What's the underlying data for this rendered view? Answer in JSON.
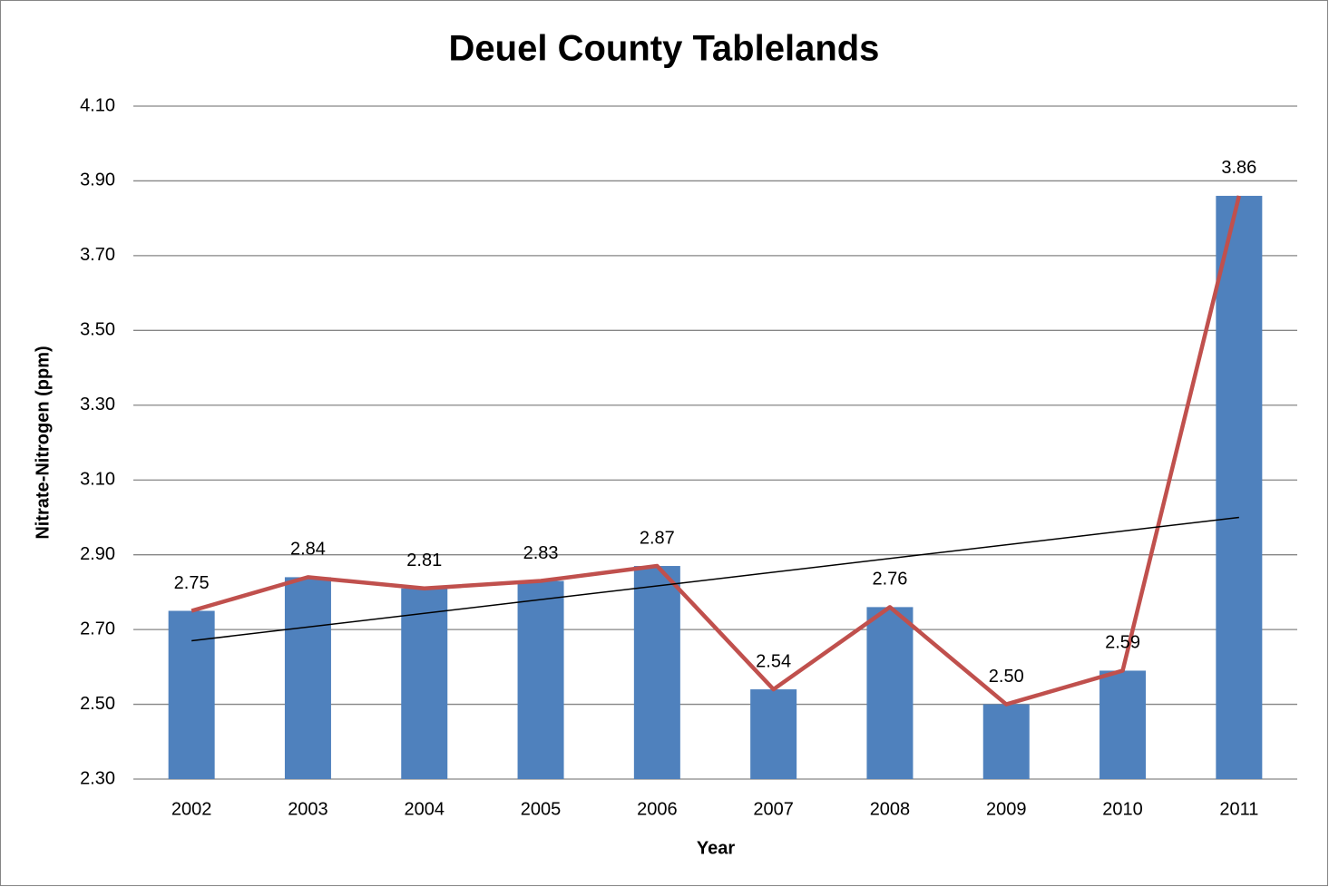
{
  "chart_data": {
    "type": "bar-line",
    "title": "Deuel County Tablelands",
    "x_label": "Year",
    "y_label": "Nitrate-Nitrogen (ppm)",
    "categories": [
      "2002",
      "2003",
      "2004",
      "2005",
      "2006",
      "2007",
      "2008",
      "2009",
      "2010",
      "2011"
    ],
    "series": [
      {
        "type": "bar",
        "color": "#4f81bd",
        "values": [
          2.75,
          2.84,
          2.81,
          2.83,
          2.87,
          2.54,
          2.76,
          2.5,
          2.59,
          3.86
        ],
        "value_labels": [
          "2.75",
          "2.84",
          "2.81",
          "2.83",
          "2.87",
          "2.54",
          "2.76",
          "2.50",
          "2.59",
          "3.86"
        ]
      },
      {
        "type": "line",
        "color": "#c0504d",
        "values": [
          2.75,
          2.84,
          2.81,
          2.83,
          2.87,
          2.54,
          2.76,
          2.5,
          2.59,
          3.86
        ]
      }
    ],
    "trendline": {
      "color": "#000000",
      "values": [
        2.67,
        3.0
      ]
    },
    "ylim": [
      2.3,
      4.1
    ],
    "yticks": [
      {
        "value": 2.3,
        "label": "2.30"
      },
      {
        "value": 2.5,
        "label": "2.50"
      },
      {
        "value": 2.7,
        "label": "2.70"
      },
      {
        "value": 2.9,
        "label": "2.90"
      },
      {
        "value": 3.1,
        "label": "3.10"
      },
      {
        "value": 3.3,
        "label": "3.30"
      },
      {
        "value": 3.5,
        "label": "3.50"
      },
      {
        "value": 3.7,
        "label": "3.70"
      },
      {
        "value": 3.9,
        "label": "3.90"
      },
      {
        "value": 4.1,
        "label": "4.10"
      }
    ],
    "grid": true
  }
}
